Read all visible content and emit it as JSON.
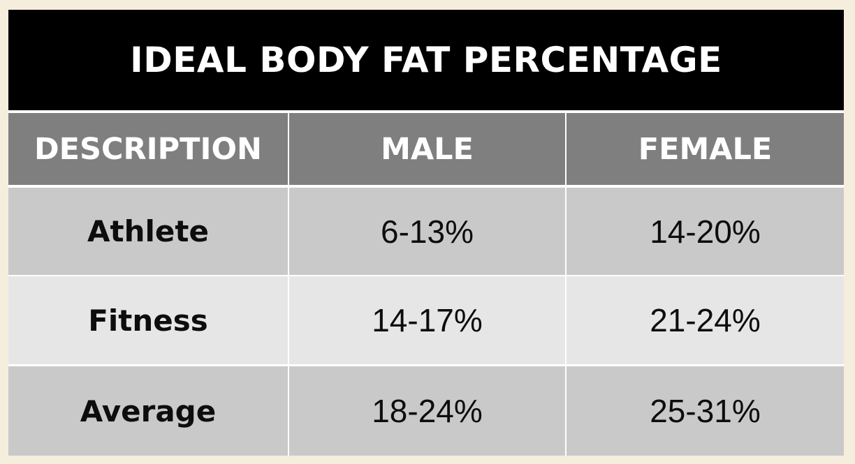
{
  "title": "IDEAL BODY FAT PERCENTAGE",
  "columns": [
    "DESCRIPTION",
    "MALE",
    "FEMALE"
  ],
  "rows": [
    {
      "description": "Athlete",
      "male": "6-13%",
      "female": "14-20%"
    },
    {
      "description": "Fitness",
      "male": "14-17%",
      "female": "21-24%"
    },
    {
      "description": "Average",
      "male": "18-24%",
      "female": "25-31%"
    }
  ],
  "colors": {
    "page_background": "#f6eedd",
    "title_background": "#000000",
    "header_background": "#7f7f7f",
    "row_dark": "#c9c9c9",
    "row_light": "#e6e6e6"
  }
}
